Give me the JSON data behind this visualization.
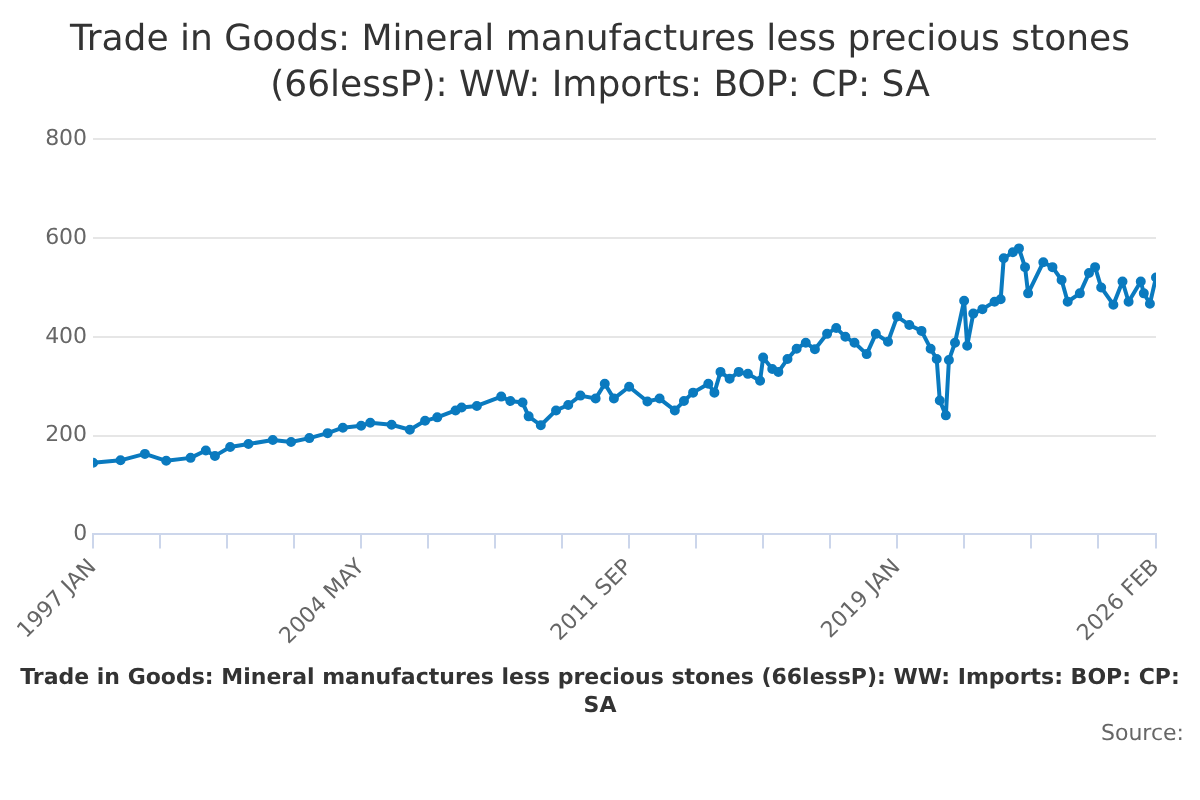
{
  "chart_data": {
    "type": "line",
    "title": "Trade in Goods: Mineral manufactures less precious stones (66lessP): WW: Imports: BOP: CP: SA",
    "x": [
      "1997-01",
      "1997-10",
      "1998-06",
      "1999-01",
      "1999-09",
      "2000-02",
      "2000-05",
      "2000-10",
      "2001-04",
      "2001-12",
      "2002-06",
      "2002-12",
      "2003-06",
      "2003-11",
      "2004-05",
      "2004-08",
      "2005-03",
      "2005-09",
      "2006-02",
      "2006-06",
      "2006-12",
      "2007-02",
      "2007-07",
      "2008-03",
      "2008-06",
      "2008-10",
      "2008-12",
      "2009-04",
      "2009-09",
      "2010-01",
      "2010-05",
      "2010-10",
      "2011-01",
      "2011-04",
      "2011-09",
      "2012-03",
      "2012-07",
      "2012-12",
      "2013-03",
      "2013-06",
      "2013-11",
      "2014-01",
      "2014-03",
      "2014-06",
      "2014-09",
      "2014-12",
      "2015-04",
      "2015-05",
      "2015-08",
      "2015-10",
      "2016-01",
      "2016-04",
      "2016-07",
      "2016-10",
      "2017-02",
      "2017-05",
      "2017-08",
      "2017-11",
      "2018-03",
      "2018-06",
      "2018-10",
      "2019-01",
      "2019-05",
      "2019-09",
      "2019-12",
      "2020-02",
      "2020-03",
      "2020-05",
      "2020-06",
      "2020-08",
      "2020-11",
      "2020-12",
      "2021-02",
      "2021-05",
      "2021-09",
      "2021-11",
      "2021-12",
      "2022-03",
      "2022-05",
      "2022-07",
      "2022-08",
      "2023-01",
      "2023-04",
      "2023-07",
      "2023-09",
      "2024-01",
      "2024-04",
      "2024-06",
      "2024-08",
      "2024-12",
      "2025-03",
      "2025-05",
      "2025-09",
      "2025-10",
      "2025-12",
      "2026-02"
    ],
    "series": [
      {
        "color": "#0a7abf",
        "values": [
          145,
          150,
          163,
          149,
          155,
          170,
          159,
          177,
          183,
          191,
          187,
          195,
          205,
          216,
          220,
          226,
          222,
          212,
          230,
          237,
          251,
          257,
          260,
          279,
          270,
          267,
          239,
          221,
          251,
          262,
          281,
          275,
          305,
          275,
          299,
          269,
          275,
          251,
          270,
          287,
          305,
          287,
          329,
          315,
          329,
          325,
          311,
          358,
          335,
          329,
          355,
          376,
          388,
          375,
          406,
          418,
          400,
          388,
          365,
          406,
          390,
          441,
          424,
          412,
          376,
          355,
          271,
          241,
          353,
          388,
          473,
          382,
          447,
          456,
          471,
          476,
          559,
          571,
          579,
          541,
          488,
          551,
          541,
          515,
          471,
          488,
          529,
          541,
          500,
          465,
          512,
          471,
          512,
          488,
          467,
          520
        ]
      }
    ],
    "xlim": [
      "1997-01",
      "2026-02"
    ],
    "xticks": [
      {
        "value": "1997-01",
        "label": "1997 JAN"
      },
      {
        "value": "1998-11",
        "label": null
      },
      {
        "value": "2000-09",
        "label": null
      },
      {
        "value": "2002-07",
        "label": null
      },
      {
        "value": "2004-05",
        "label": "2004 MAY"
      },
      {
        "value": "2006-03",
        "label": null
      },
      {
        "value": "2008-01",
        "label": null
      },
      {
        "value": "2009-11",
        "label": null
      },
      {
        "value": "2011-09",
        "label": "2011 SEP"
      },
      {
        "value": "2013-07",
        "label": null
      },
      {
        "value": "2015-05",
        "label": null
      },
      {
        "value": "2017-03",
        "label": null
      },
      {
        "value": "2019-01",
        "label": "2019 JAN"
      },
      {
        "value": "2020-11",
        "label": null
      },
      {
        "value": "2022-09",
        "label": null
      },
      {
        "value": "2024-07",
        "label": null
      },
      {
        "value": "2026-02",
        "label": "2026 FEB"
      }
    ],
    "ylim": [
      0,
      800
    ],
    "yticks": [
      0,
      200,
      400,
      600,
      800
    ],
    "grid": "y",
    "legend": false,
    "marker": "circle",
    "line_style": "solid",
    "annotations": [
      "Trade in Goods: Mineral manufactures less precious stones (66lessP): WW: Imports: BOP: CP: SA",
      "Source:"
    ]
  }
}
